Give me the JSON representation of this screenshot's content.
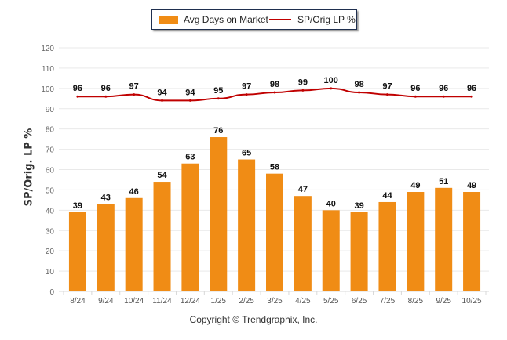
{
  "chart_data": {
    "type": "bar",
    "title": "",
    "xlabel": "",
    "ylabel": "SP/Orig. LP %",
    "ylim": [
      0,
      120
    ],
    "yticks": [
      0,
      10,
      20,
      30,
      40,
      50,
      60,
      70,
      80,
      90,
      100,
      110,
      120
    ],
    "grid": true,
    "legend_position": "top-center",
    "categories": [
      "8/24",
      "9/24",
      "10/24",
      "11/24",
      "12/24",
      "1/25",
      "2/25",
      "3/25",
      "4/25",
      "5/25",
      "6/25",
      "7/25",
      "8/25",
      "9/25",
      "10/25"
    ],
    "series": [
      {
        "name": "Avg Days on Market",
        "type": "bar",
        "color": "#f08c15",
        "values": [
          39,
          43,
          46,
          54,
          63,
          76,
          65,
          58,
          47,
          40,
          39,
          44,
          49,
          51,
          49
        ]
      },
      {
        "name": "SP/Orig LP %",
        "type": "line",
        "color": "#c00000",
        "values": [
          96,
          96,
          97,
          94,
          94,
          95,
          97,
          98,
          99,
          100,
          98,
          97,
          96,
          96,
          96
        ]
      }
    ]
  },
  "legend": {
    "bar_label": "Avg Days on Market",
    "line_label": "SP/Orig LP %"
  },
  "footer": {
    "copyright": "Copyright © Trendgraphix, Inc."
  }
}
